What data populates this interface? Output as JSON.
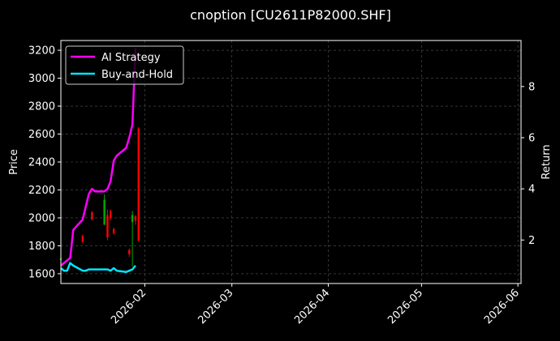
{
  "chart_data": {
    "type": "line",
    "title": "cnoption [CU2611P82000.SHF]",
    "xlabel": "",
    "ylabel": "Price",
    "ylabel_right": "Return",
    "x_ticks": [
      "2026-02",
      "2026-03",
      "2026-04",
      "2026-05",
      "2026-06"
    ],
    "x_tick_values": [
      "2026-02-01",
      "2026-03-01",
      "2026-04-01",
      "2026-05-01",
      "2026-06-01"
    ],
    "xlim": [
      "2026-01-05",
      "2026-06-02"
    ],
    "y_ticks": [
      1600,
      1800,
      2000,
      2200,
      2400,
      2600,
      2800,
      3000,
      3200
    ],
    "ylim": [
      1530,
      3270
    ],
    "y2_ticks": [
      2,
      4,
      6,
      8
    ],
    "y2lim": [
      0.3,
      9.8
    ],
    "grid": true,
    "legend_position": "top-left",
    "colors": {
      "up": "#00aa00",
      "down": "#ff0000",
      "strategy": "#ff00ff",
      "buyhold": "#00e5ff",
      "grid": "#555555"
    },
    "series": [
      {
        "name": "AI Strategy",
        "axis": "right",
        "x": [
          "2026-01-05",
          "2026-01-06",
          "2026-01-07",
          "2026-01-08",
          "2026-01-09",
          "2026-01-12",
          "2026-01-13",
          "2026-01-14",
          "2026-01-15",
          "2026-01-16",
          "2026-01-19",
          "2026-01-20",
          "2026-01-21",
          "2026-01-22",
          "2026-01-23",
          "2026-01-26",
          "2026-01-27",
          "2026-01-28",
          "2026-01-29"
        ],
        "values": [
          1.0,
          1.1,
          1.2,
          1.3,
          2.4,
          2.8,
          3.3,
          3.8,
          4.0,
          3.9,
          3.9,
          4.0,
          4.3,
          5.1,
          5.3,
          5.6,
          6.0,
          6.5,
          9.5
        ]
      },
      {
        "name": "Buy-and-Hold",
        "axis": "right",
        "x": [
          "2026-01-05",
          "2026-01-06",
          "2026-01-07",
          "2026-01-08",
          "2026-01-09",
          "2026-01-12",
          "2026-01-13",
          "2026-01-14",
          "2026-01-15",
          "2026-01-16",
          "2026-01-19",
          "2026-01-20",
          "2026-01-21",
          "2026-01-22",
          "2026-01-23",
          "2026-01-26",
          "2026-01-27",
          "2026-01-28",
          "2026-01-29"
        ],
        "values": [
          0.9,
          0.8,
          0.8,
          1.1,
          1.0,
          0.8,
          0.8,
          0.85,
          0.85,
          0.85,
          0.85,
          0.85,
          0.8,
          0.9,
          0.8,
          0.75,
          0.8,
          0.85,
          1.0
        ]
      }
    ],
    "candles": [
      {
        "date": "2026-01-05",
        "open": 1700,
        "high": 1720,
        "low": 1690,
        "close": 1710
      },
      {
        "date": "2026-01-12",
        "open": 1870,
        "high": 1880,
        "low": 1820,
        "close": 1830
      },
      {
        "date": "2026-01-15",
        "open": 2040,
        "high": 2050,
        "low": 1980,
        "close": 1990
      },
      {
        "date": "2026-01-19",
        "open": 1950,
        "high": 2170,
        "low": 1950,
        "close": 2130
      },
      {
        "date": "2026-01-20",
        "open": 2020,
        "high": 2060,
        "low": 1840,
        "close": 1860
      },
      {
        "date": "2026-01-21",
        "open": 2050,
        "high": 2060,
        "low": 1980,
        "close": 2000
      },
      {
        "date": "2026-01-22",
        "open": 1920,
        "high": 1930,
        "low": 1880,
        "close": 1890
      },
      {
        "date": "2026-01-27",
        "open": 1770,
        "high": 1780,
        "low": 1720,
        "close": 1740
      },
      {
        "date": "2026-01-28",
        "open": 1970,
        "high": 2050,
        "low": 1650,
        "close": 2020
      },
      {
        "date": "2026-01-29",
        "open": 2010,
        "high": 2020,
        "low": 1950,
        "close": 1980
      },
      {
        "date": "2026-01-30",
        "open": 2640,
        "high": 2650,
        "low": 1830,
        "close": 1840
      }
    ]
  }
}
